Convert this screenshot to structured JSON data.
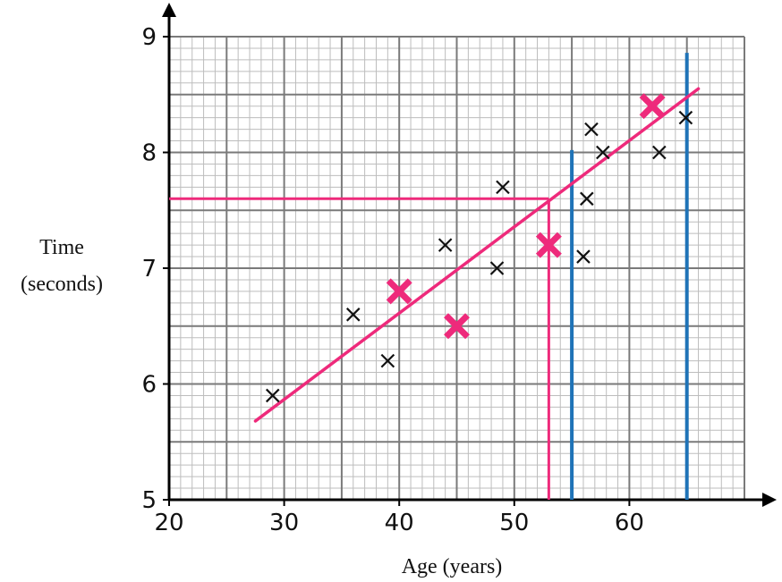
{
  "chart_data": {
    "type": "scatter",
    "xlabel": "Age (years)",
    "ylabel": [
      "Time",
      "(seconds)"
    ],
    "xlim": [
      20,
      70
    ],
    "ylim": [
      5,
      9
    ],
    "x_ticks": [
      "20",
      "30",
      "40",
      "50",
      "60"
    ],
    "y_ticks": [
      "5",
      "6",
      "7",
      "8",
      "9"
    ],
    "grid": {
      "major_x": 5,
      "minor_x": 1,
      "major_y": 0.5,
      "minor_y": 0.1
    },
    "series": [
      {
        "marker": "x",
        "color": "#111111",
        "points": [
          [
            29,
            5.9
          ],
          [
            36,
            6.6
          ],
          [
            39,
            6.2
          ],
          [
            44,
            7.2
          ],
          [
            48.5,
            7.0
          ],
          [
            49,
            7.7
          ],
          [
            56,
            7.1
          ],
          [
            56.3,
            7.6
          ],
          [
            56.7,
            8.2
          ],
          [
            57.7,
            8.0
          ],
          [
            62.6,
            8.0
          ],
          [
            64.9,
            8.3
          ]
        ]
      },
      {
        "marker": "X",
        "color": "#ee2a7b",
        "points": [
          [
            40,
            6.8
          ],
          [
            45,
            6.5
          ],
          [
            53,
            7.2
          ],
          [
            62,
            8.4
          ]
        ]
      }
    ],
    "line_of_best_fit": {
      "color": "#ee2a7b",
      "from": [
        27.5,
        5.68
      ],
      "to": [
        66,
        8.55
      ]
    },
    "reading_lines": {
      "color": "#ee2a7b",
      "x": 53,
      "y": 7.6
    },
    "vertical_lines": {
      "color": "#1f73b7",
      "lines": [
        {
          "x": 55,
          "top": 8.02
        },
        {
          "x": 65,
          "top": 8.86
        }
      ]
    }
  }
}
